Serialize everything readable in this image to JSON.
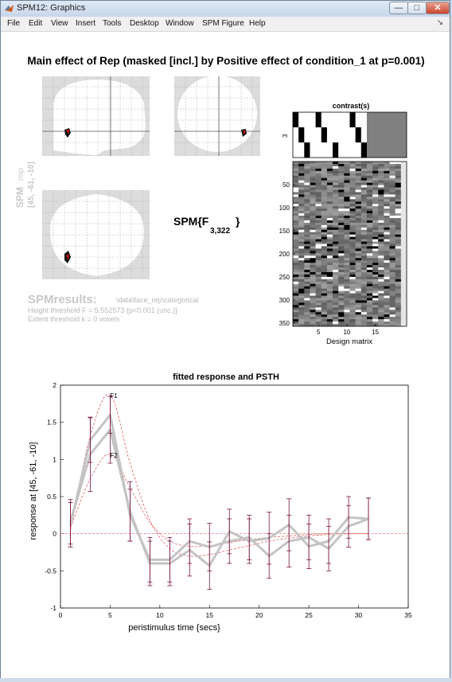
{
  "window": {
    "title": "SPM12: Graphics",
    "controls": {
      "minimize": "—",
      "maximize": "□",
      "close": "✕"
    }
  },
  "menubar": {
    "items": [
      "File",
      "Edit",
      "View",
      "Insert",
      "Tools",
      "Desktop",
      "Window",
      "SPM Figure",
      "Help"
    ],
    "dock_arrow": "↘"
  },
  "figure": {
    "heading": "Main effect of Rep (masked [incl.] by Positive effect of condition_1 at p=0.001)",
    "spm_label": "SPM",
    "spm_label_sub": "mip",
    "mip_coords": "[45, -61, -10]",
    "stat_label": "SPM{F",
    "stat_sub": "3,322",
    "stat_close": "}",
    "results_title": "SPMresults:",
    "results_path": "\\data\\face_rep\\categorical",
    "height_threshold": "Height threshold F = 5.552573  {p<0.001 (unc.)}",
    "extent_threshold": "Extent threshold k = 0 voxels"
  },
  "contrast_panel": {
    "title": "contrast(s)",
    "ytick": "3",
    "contrast_rows": [
      [
        1,
        0,
        0,
        0,
        1,
        0,
        0,
        0,
        0,
        0,
        1,
        0,
        0,
        0,
        0,
        0,
        0,
        0,
        0,
        0
      ],
      [
        0,
        1,
        0,
        0,
        0,
        1,
        0,
        0,
        0,
        0,
        0,
        1,
        0,
        0,
        0,
        0,
        0,
        0,
        0,
        0
      ],
      [
        0,
        0,
        1,
        0,
        0,
        0,
        0,
        1,
        0,
        0,
        0,
        0,
        1,
        0,
        0,
        0,
        0,
        0,
        0,
        0
      ]
    ]
  },
  "design_matrix": {
    "xlabel": "Design matrix",
    "yticks": [
      "50",
      "100",
      "150",
      "200",
      "250",
      "300",
      "350"
    ],
    "xticks": [
      "5",
      "10",
      "15"
    ]
  },
  "chart_data": {
    "type": "line",
    "title": "fitted response and PSTH",
    "xlabel": "peristimulus time {secs}",
    "ylabel": "response at [45, -61, -10]",
    "xlim": [
      0,
      35
    ],
    "ylim": [
      -1,
      2
    ],
    "xticks": [
      "0",
      "5",
      "10",
      "15",
      "20",
      "25",
      "30",
      "35"
    ],
    "yticks": [
      "-1",
      "-0.5",
      "0",
      "0.5",
      "1",
      "1.5",
      "2"
    ],
    "curve_labels": [
      "F1",
      "F2"
    ],
    "x": [
      1,
      3,
      5,
      7,
      9,
      11,
      13,
      15,
      17,
      19,
      21,
      23,
      25,
      27,
      29,
      31
    ],
    "series": [
      {
        "name": "F1",
        "values": [
          0.16,
          1.07,
          1.4,
          0.3,
          -0.4,
          -0.4,
          -0.22,
          -0.43,
          0.03,
          -0.1,
          -0.06,
          0.12,
          -0.17,
          -0.1,
          0.22,
          0.2
        ],
        "errors": [
          0.3,
          0.5,
          0.45,
          0.4,
          0.3,
          0.3,
          0.35,
          0.32,
          0.3,
          0.3,
          0.35,
          0.35,
          0.3,
          0.3,
          0.28,
          0.28
        ],
        "fitted": [
          0.05,
          1.32,
          1.87,
          0.95,
          0.18,
          -0.2,
          -0.3,
          -0.28,
          -0.22,
          -0.16,
          -0.1,
          -0.06,
          -0.03,
          -0.01,
          0,
          0
        ]
      },
      {
        "name": "F2",
        "values": [
          0.12,
          1.26,
          1.6,
          0.25,
          -0.35,
          -0.35,
          -0.1,
          -0.18,
          -0.1,
          -0.05,
          -0.3,
          -0.1,
          -0.05,
          -0.2,
          0.1,
          0.2
        ],
        "errors": [
          0.3,
          0.3,
          0.25,
          0.35,
          0.3,
          0.3,
          0.3,
          0.32,
          0.3,
          0.3,
          0.3,
          0.35,
          0.3,
          0.3,
          0.28,
          0.28
        ],
        "fitted": [
          0.08,
          0.74,
          1.07,
          0.62,
          0.15,
          -0.1,
          -0.17,
          -0.16,
          -0.12,
          -0.08,
          -0.05,
          -0.03,
          -0.01,
          0,
          0,
          0
        ]
      }
    ],
    "colors": {
      "data": "#c4c4c4",
      "fit": "#e06060",
      "error": "#7a1440",
      "zero": "#e06060"
    }
  }
}
